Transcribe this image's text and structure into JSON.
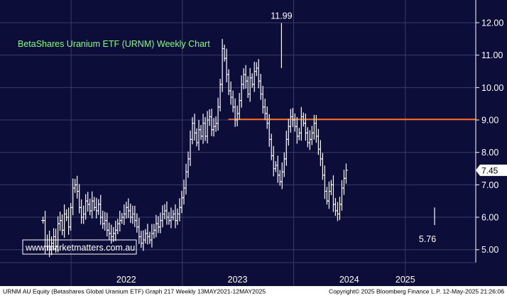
{
  "chart_data": {
    "type": "ohlc",
    "title": "BetaShares Uranium ETF (URNM) Weekly Chart",
    "watermark": "www.marketmatters.com.au",
    "footer": {
      "left": "URNM AU Equity (Betashares Global Uranium ETF) Graph 217  Weekly 13MAY2021-12MAY2025",
      "right": "Copyright© 2025 Bloomberg Finance L.P.     12-May-2025 21:26:06"
    },
    "y_axis": {
      "min": 4.6,
      "max": 12.7,
      "ticks": [
        "5.00",
        "6.00",
        "7.00",
        "8.00",
        "9.00",
        "10.00",
        "11.00",
        "12.00"
      ],
      "tick_values": [
        5,
        6,
        7,
        8,
        9,
        10,
        11,
        12
      ]
    },
    "x_axis": {
      "labels": [
        "2022",
        "2023",
        "2024",
        "2025"
      ],
      "label_dates": [
        "2022-07-01",
        "2023-07-01",
        "2024-07-01",
        "2025-01-01"
      ],
      "boundaries": [
        "2022-01-01",
        "2023-01-01",
        "2024-01-01",
        "2025-01-01"
      ],
      "start": "2021-05-13",
      "end": "2025-08-20"
    },
    "series": [
      {
        "name": "URNM",
        "frequency": "weekly",
        "start": "2021-10-01",
        "close": [
          5.9,
          5.1,
          5.3,
          5.0,
          5.2,
          5.4,
          5.1,
          5.8,
          5.9,
          5.6,
          6.1,
          6.0,
          5.7,
          6.3,
          6.9,
          7.0,
          6.8,
          6.3,
          6.0,
          6.1,
          6.5,
          6.4,
          6.2,
          6.5,
          6.3,
          6.2,
          6.4,
          6.0,
          5.8,
          5.9,
          5.6,
          5.5,
          5.4,
          5.5,
          5.6,
          5.8,
          5.9,
          6.0,
          6.1,
          6.3,
          6.2,
          6.0,
          6.1,
          5.9,
          5.7,
          5.4,
          5.2,
          5.3,
          5.5,
          5.4,
          5.3,
          5.5,
          5.6,
          5.8,
          5.7,
          5.9,
          6.1,
          6.2,
          6.0,
          5.9,
          6.0,
          6.1,
          5.9,
          6.1,
          6.3,
          6.6,
          6.9,
          7.4,
          7.8,
          8.4,
          8.9,
          8.6,
          8.3,
          8.7,
          8.5,
          8.9,
          8.5,
          9.0,
          9.1,
          8.7,
          8.8,
          8.9,
          9.4,
          10.1,
          11.2,
          10.9,
          10.4,
          9.9,
          9.7,
          9.4,
          9.0,
          9.2,
          9.6,
          10.1,
          10.4,
          10.2,
          9.8,
          10.3,
          10.1,
          10.5,
          10.6,
          10.2,
          9.8,
          9.4,
          9.2,
          8.9,
          8.4,
          7.9,
          7.5,
          7.6,
          7.3,
          7.1,
          7.4,
          7.8,
          8.4,
          8.8,
          9.1,
          9.0,
          8.8,
          8.5,
          8.6,
          9.1,
          8.9,
          8.6,
          8.3,
          8.4,
          8.6,
          8.9,
          8.5,
          8.1,
          7.8,
          7.3,
          6.8,
          6.5,
          6.8,
          7.0,
          6.4,
          6.2,
          6.1,
          6.4,
          6.9,
          7.2,
          7.45
        ]
      }
    ],
    "annotations": [
      {
        "text": "11.99",
        "date": "2023-11-22",
        "value": 11.99,
        "type": "high"
      },
      {
        "text": "5.76",
        "date": "2025-04-07",
        "value": 5.76,
        "type": "low"
      }
    ],
    "last_price": {
      "text": "7.45",
      "value": 7.45
    },
    "horizontal_line": {
      "value": 9.02,
      "from": "2023-06-01",
      "color": "#ff6a1a"
    },
    "colors": {
      "background": "#0d0d3a",
      "grid": "#3c3c66",
      "bars": "#ffffff",
      "title": "#7dff7d",
      "watermark_text": "#ffffff",
      "watermark_border": "#ffffff",
      "axis_text": "#ffffff",
      "footer_bg": "#ffffff",
      "footer_text": "#000000",
      "price_tag_bg": "#ffffff",
      "price_tag_text": "#000000",
      "level_line": "#ff6a1a"
    },
    "grid": true
  }
}
